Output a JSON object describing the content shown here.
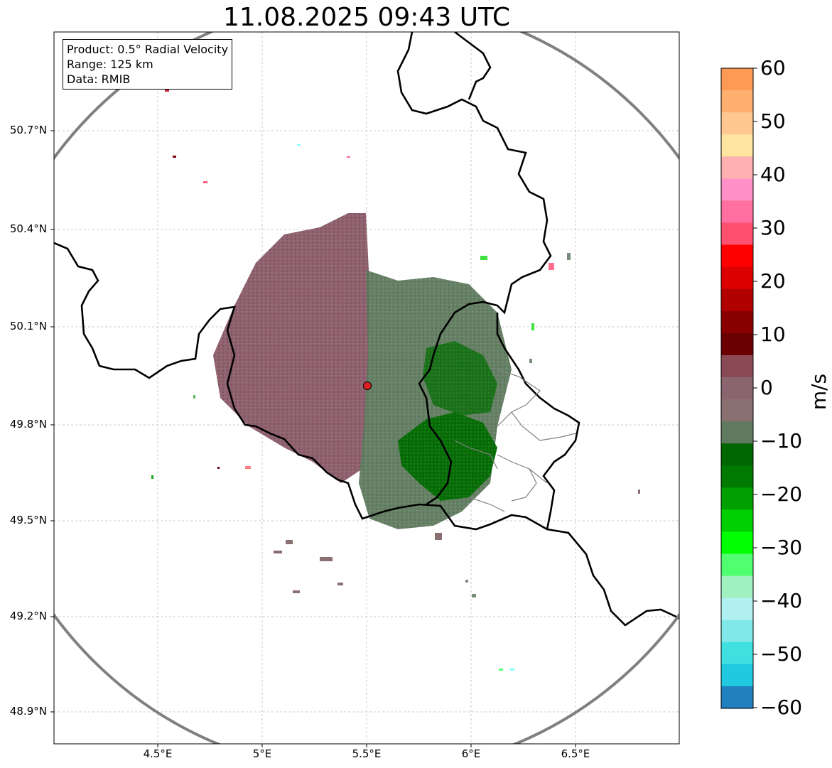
{
  "title": "11.08.2025 09:43 UTC",
  "info": {
    "product": "Product: 0.5° Radial Velocity",
    "range": "Range: 125 km",
    "data": "Data: RMIB"
  },
  "lat_ticks": [
    "50.7°N",
    "50.4°N",
    "50.1°N",
    "49.8°N",
    "49.5°N",
    "49.2°N",
    "48.9°N"
  ],
  "lon_ticks": [
    "4.5°E",
    "5°E",
    "5.5°E",
    "6°E",
    "6.5°E"
  ],
  "colorbar": {
    "label": "m/s",
    "ticks": [
      "60",
      "50",
      "40",
      "30",
      "20",
      "10",
      "0",
      "−10",
      "−20",
      "−30",
      "−40",
      "−50",
      "−60"
    ],
    "stops": [
      "#ff9a55",
      "#ffb070",
      "#ffc890",
      "#ffe5a0",
      "#ffb0b0",
      "#ff90c8",
      "#ff70a0",
      "#ff5070",
      "#ff0000",
      "#dd0000",
      "#b00000",
      "#8a0000",
      "#6a0000",
      "#8a4a55",
      "#8a6570",
      "#8a7070",
      "#607a60",
      "#006600",
      "#007a00",
      "#00a000",
      "#00d000",
      "#00ff00",
      "#50ff70",
      "#a0f0c0",
      "#b0f0f0",
      "#80e8e8",
      "#40e0e0",
      "#20c8e0",
      "#2080c0"
    ]
  },
  "radar_site": "radar-site-marker",
  "colors": {
    "range_ring": "#808080",
    "border": "#000000",
    "grid": "#bbbbbb"
  }
}
